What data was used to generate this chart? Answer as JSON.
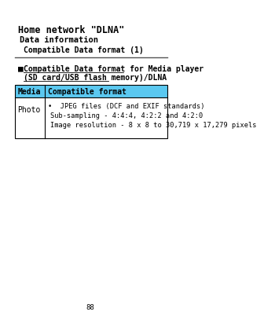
{
  "title_line1": "Home network \"DLNA\"",
  "title_line2": "Data information",
  "title_line3": "Compatible Data format (1)",
  "section_bullet": "■",
  "section_title_line1": "Compatible Data format for Media player",
  "section_title_line2": "(SD card/USB flash memory)/DLNA",
  "table_header_col1": "Media",
  "table_header_col2": "Compatible format",
  "table_header_bg": "#5bc8f0",
  "table_row_col1": "Photo",
  "table_row_line1": "•  JPEG files (DCF and EXIF standards)",
  "table_row_line2": "Sub-sampling - 4:4:4, 4:2:2 and 4:2:0",
  "table_row_line3": "Image resolution - 8 x 8 to 30,719 x 17,279 pixels",
  "page_number": "88",
  "bg_color": "#ffffff",
  "text_color": "#000000",
  "border_color": "#000000",
  "separator_color": "#555555",
  "font_family": "monospace"
}
